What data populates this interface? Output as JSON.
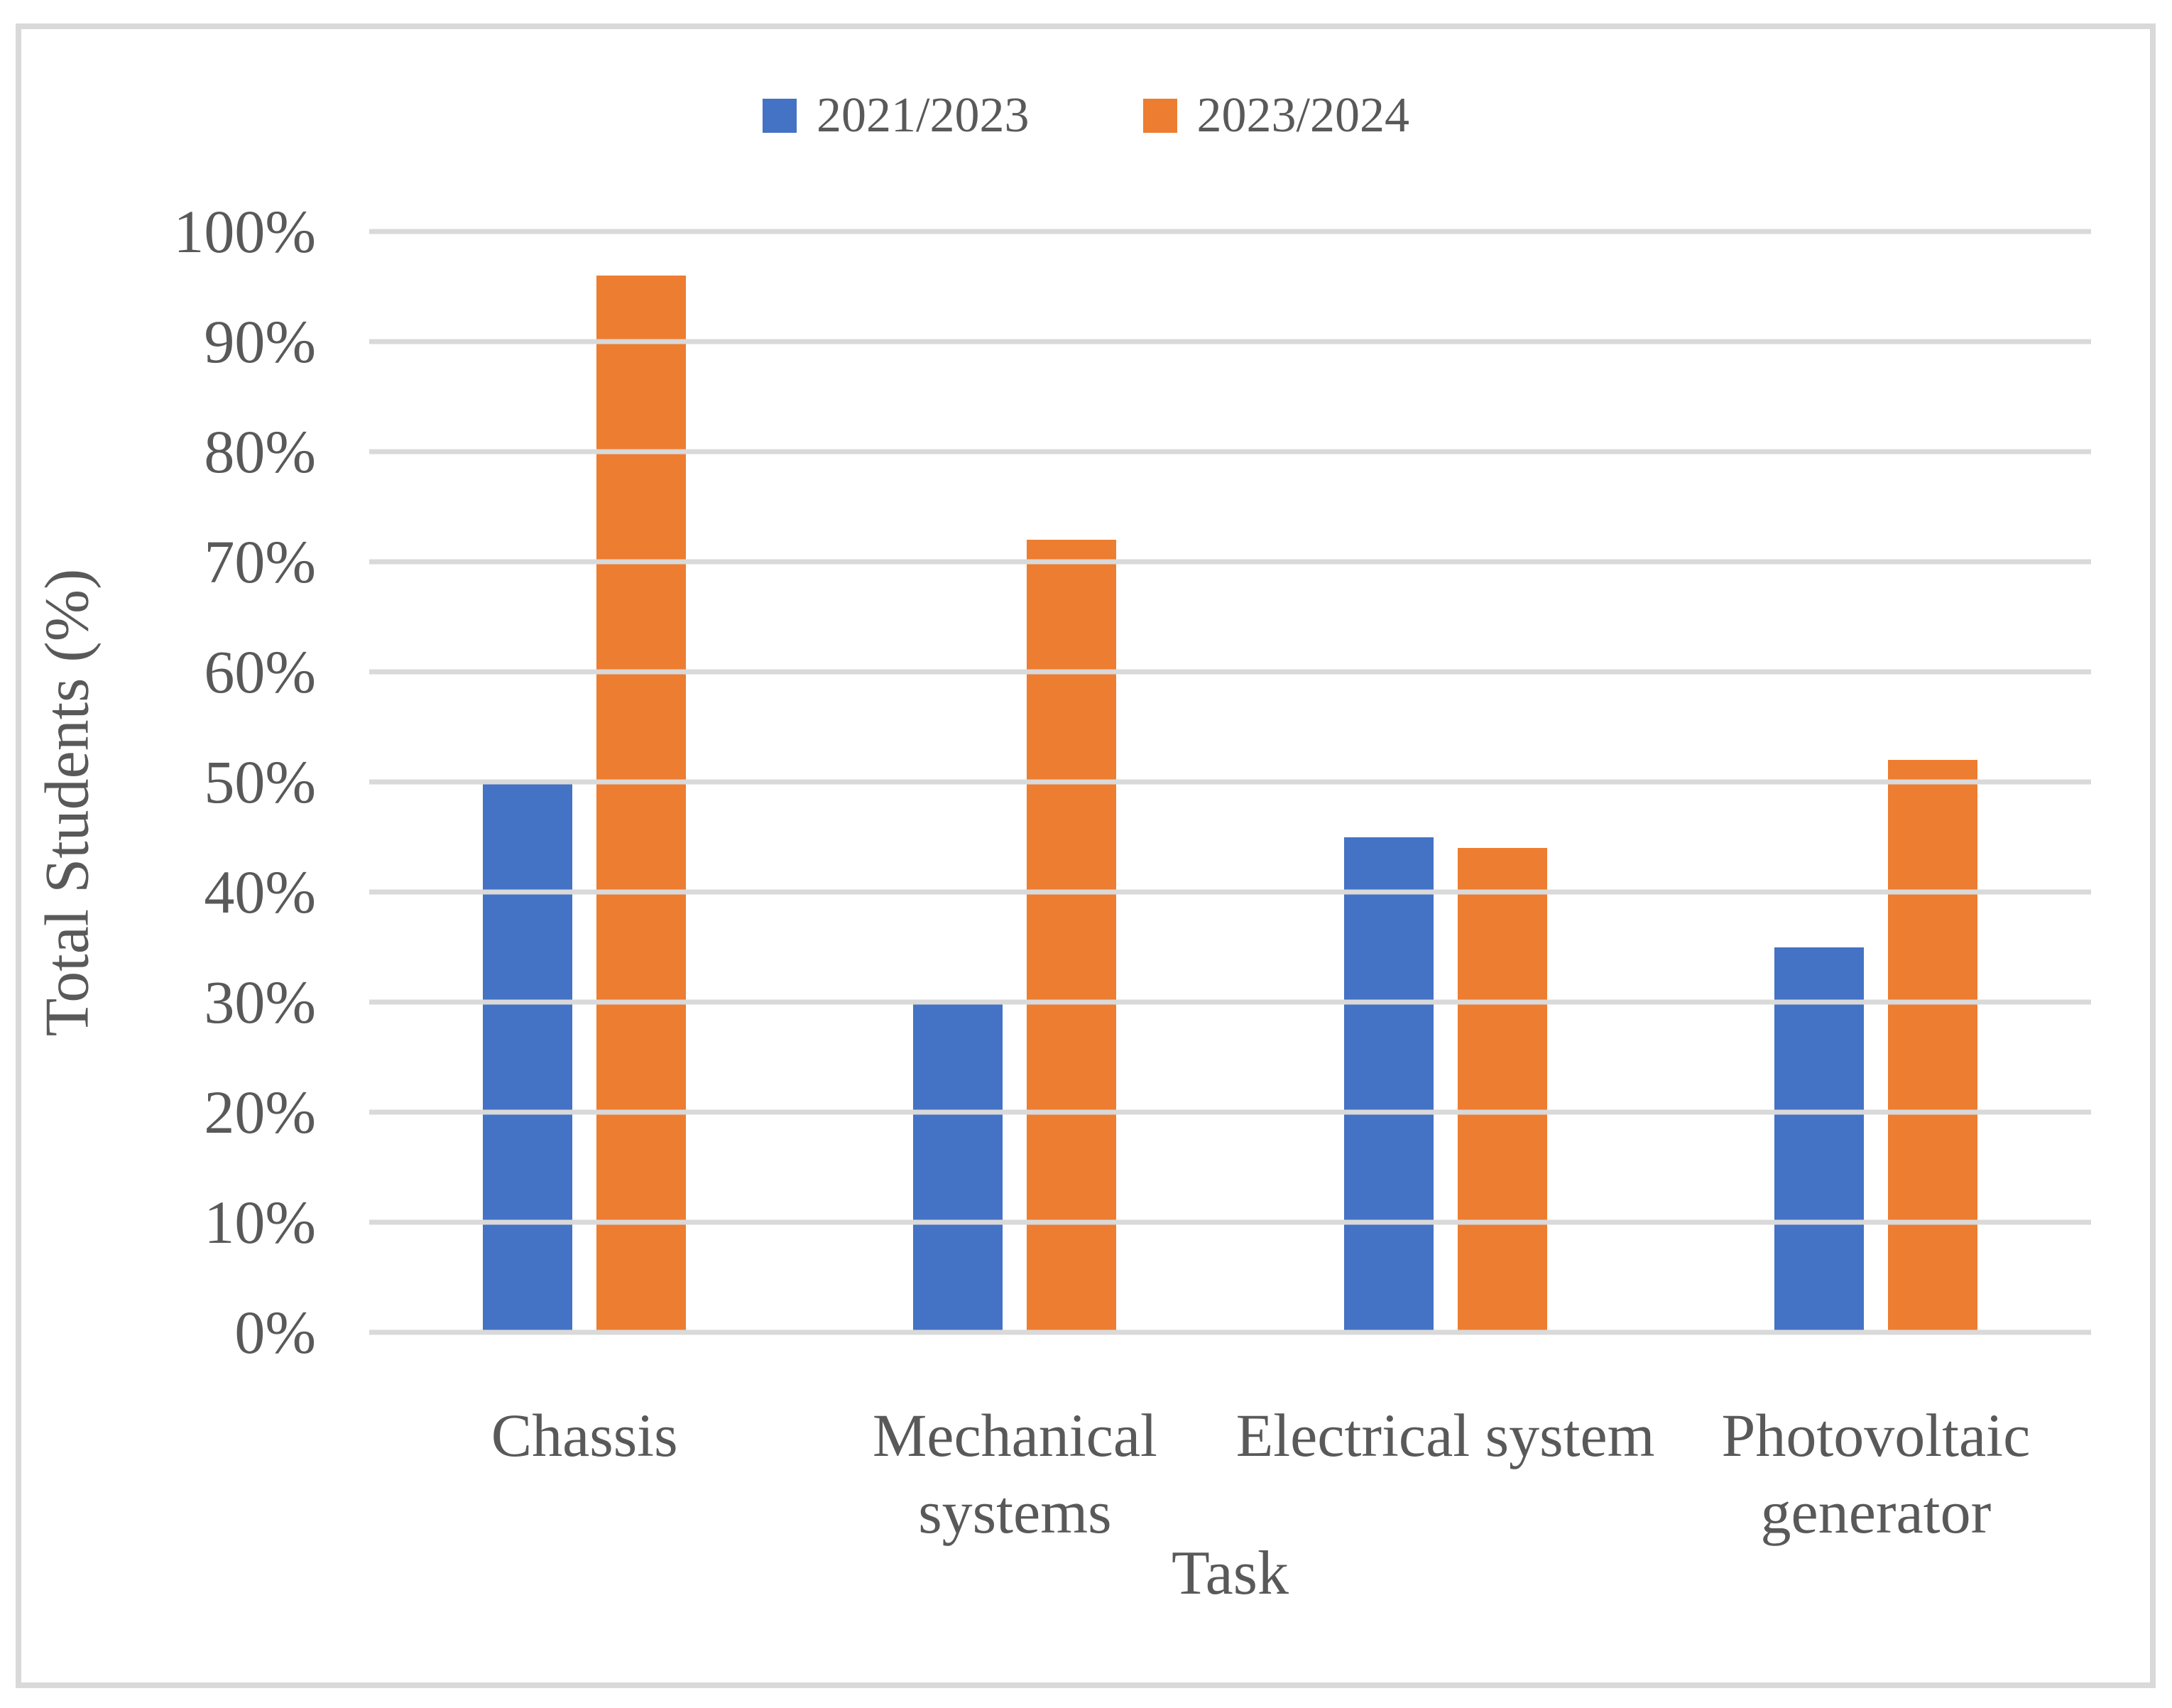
{
  "chart_data": {
    "type": "bar",
    "categories": [
      "Chassis",
      "Mechanical systems",
      "Electrical system",
      "Photovoltaic generator"
    ],
    "series": [
      {
        "name": "2021/2023",
        "color": "#4472C4",
        "values": [
          50,
          30,
          45,
          35
        ]
      },
      {
        "name": "2023/2024",
        "color": "#ED7D31",
        "values": [
          96,
          72,
          44,
          52
        ]
      }
    ],
    "xlabel": "Task",
    "ylabel": "Total Students (%)",
    "ylim": [
      0,
      100
    ],
    "ytick_step": 10,
    "yticks": [
      "100%",
      "90%",
      "80%",
      "70%",
      "60%",
      "50%",
      "40%",
      "30%",
      "20%",
      "10%",
      "0%"
    ],
    "grid": true,
    "legend_position": "top-center"
  },
  "style_colors": {
    "gridline": "#D9D9D9",
    "frame_border": "#D9D9D9",
    "text": "#595959",
    "background": "#FFFFFF"
  }
}
